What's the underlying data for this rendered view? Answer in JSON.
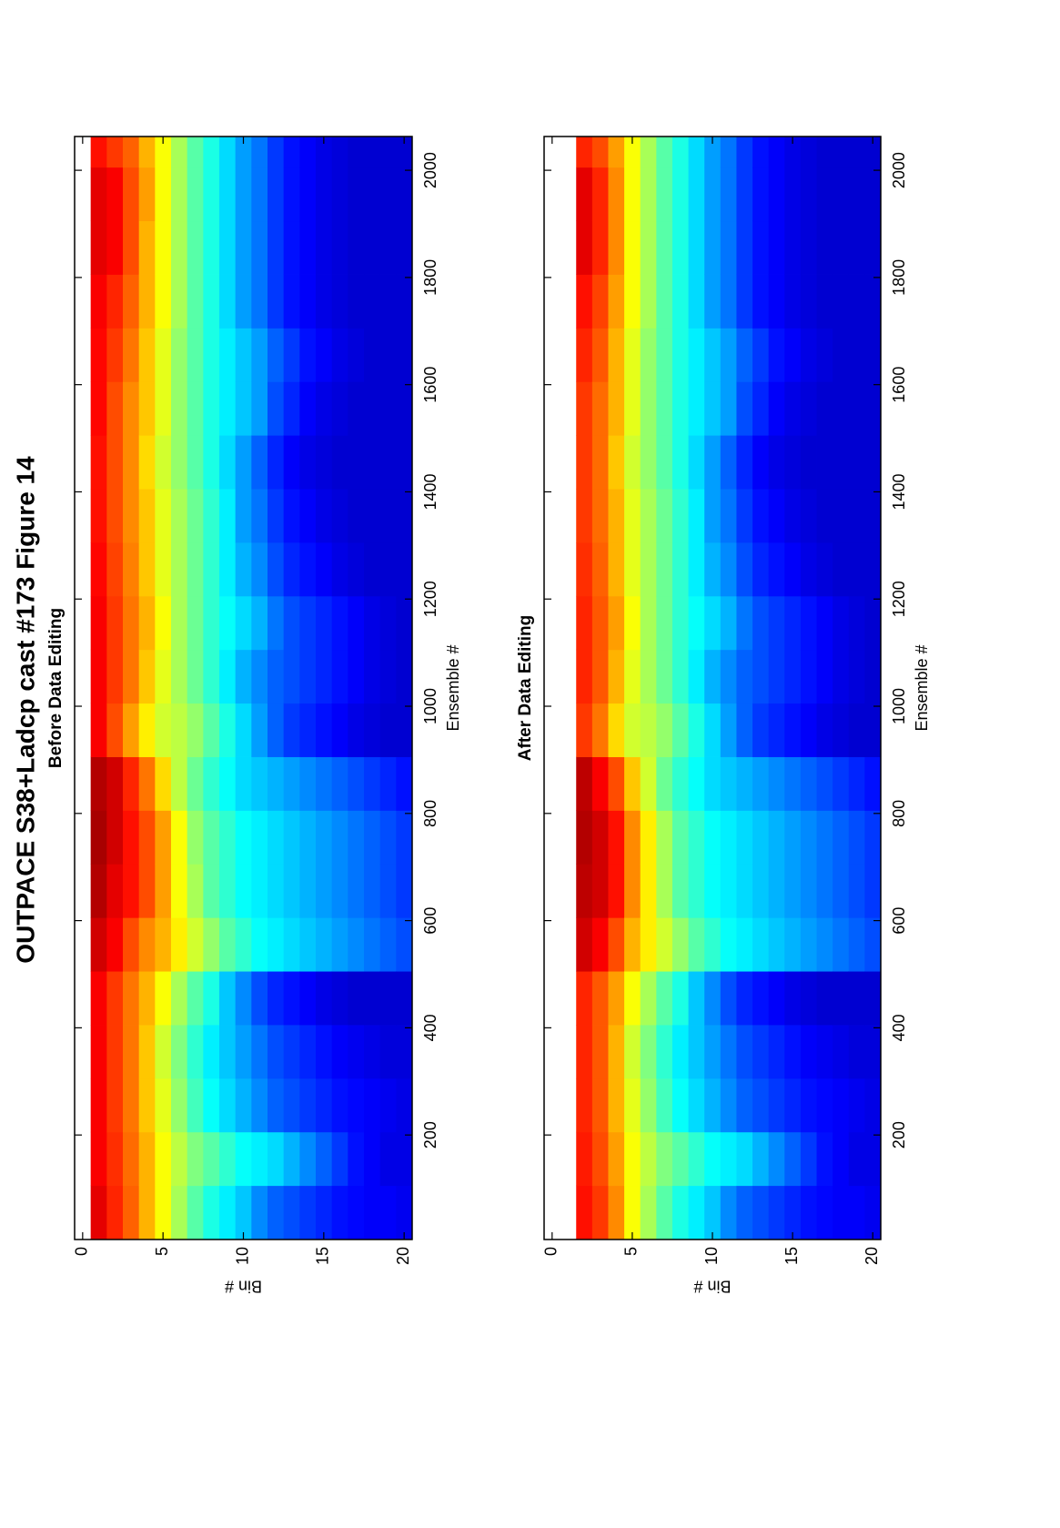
{
  "figure_title": "OUTPACE S38+Ladcp cast #173  Figure 14",
  "chart_data": [
    {
      "type": "heatmap",
      "title": "Before Data Editing",
      "xlabel": "Ensemble #",
      "ylabel": "Bin #",
      "colormap": "jet",
      "clim": [
        0,
        100
      ],
      "y_reversed": true,
      "xlim": [
        5,
        2063
      ],
      "ylim": [
        -0.5,
        20.5
      ],
      "xticks": [
        200,
        400,
        600,
        800,
        1000,
        1200,
        1400,
        1600,
        1800,
        2000
      ],
      "yticks": [
        0,
        5,
        10,
        15,
        20
      ],
      "x": [
        55,
        155,
        255,
        355,
        455,
        555,
        655,
        755,
        855,
        955,
        1055,
        1155,
        1255,
        1355,
        1455,
        1555,
        1655,
        1755,
        1855,
        1955,
        2055
      ],
      "y": [
        1,
        2,
        3,
        4,
        5,
        6,
        7,
        8,
        9,
        10,
        11,
        12,
        13,
        14,
        15,
        16,
        17,
        18,
        19,
        20
      ],
      "z": [
        [
          90,
          88,
          88,
          88,
          88,
          92,
          95,
          96,
          95,
          88,
          88,
          88,
          87,
          86,
          86,
          87,
          87,
          88,
          90,
          90,
          86
        ],
        [
          84,
          83,
          82,
          82,
          82,
          88,
          90,
          92,
          92,
          80,
          82,
          82,
          81,
          80,
          80,
          80,
          82,
          84,
          88,
          88,
          82
        ],
        [
          78,
          77,
          76,
          76,
          76,
          80,
          86,
          86,
          84,
          72,
          76,
          76,
          75,
          74,
          74,
          74,
          76,
          78,
          80,
          80,
          78
        ],
        [
          70,
          70,
          68,
          68,
          70,
          74,
          80,
          80,
          76,
          64,
          68,
          70,
          68,
          68,
          66,
          68,
          68,
          70,
          70,
          72,
          70
        ],
        [
          62,
          62,
          60,
          58,
          62,
          70,
          72,
          72,
          66,
          58,
          60,
          62,
          60,
          60,
          58,
          60,
          60,
          62,
          62,
          62,
          62
        ],
        [
          54,
          56,
          52,
          50,
          54,
          64,
          62,
          62,
          56,
          56,
          54,
          54,
          54,
          54,
          52,
          52,
          52,
          54,
          54,
          54,
          54
        ],
        [
          46,
          50,
          44,
          42,
          46,
          58,
          54,
          52,
          48,
          52,
          48,
          48,
          48,
          48,
          46,
          46,
          46,
          46,
          46,
          46,
          46
        ],
        [
          40,
          46,
          38,
          36,
          40,
          52,
          46,
          46,
          42,
          46,
          42,
          42,
          42,
          42,
          40,
          40,
          40,
          40,
          40,
          40,
          40
        ],
        [
          36,
          42,
          34,
          32,
          32,
          46,
          42,
          42,
          38,
          40,
          36,
          38,
          36,
          36,
          34,
          36,
          36,
          34,
          34,
          34,
          34
        ],
        [
          32,
          38,
          30,
          28,
          26,
          42,
          38,
          38,
          34,
          34,
          30,
          34,
          30,
          28,
          28,
          32,
          32,
          28,
          28,
          28,
          28
        ],
        [
          26,
          36,
          26,
          24,
          20,
          38,
          36,
          36,
          32,
          28,
          26,
          30,
          26,
          24,
          22,
          28,
          28,
          24,
          24,
          24,
          24
        ],
        [
          22,
          34,
          22,
          20,
          16,
          36,
          34,
          34,
          30,
          22,
          22,
          24,
          20,
          18,
          16,
          20,
          22,
          18,
          18,
          18,
          18
        ],
        [
          20,
          30,
          20,
          18,
          14,
          34,
          32,
          32,
          28,
          18,
          20,
          20,
          16,
          14,
          12,
          16,
          18,
          14,
          14,
          14,
          14
        ],
        [
          18,
          26,
          18,
          16,
          12,
          32,
          30,
          30,
          26,
          16,
          18,
          18,
          14,
          12,
          10,
          12,
          14,
          12,
          12,
          12,
          12
        ],
        [
          16,
          22,
          16,
          14,
          10,
          30,
          28,
          28,
          24,
          14,
          16,
          16,
          12,
          10,
          9,
          10,
          12,
          10,
          10,
          10,
          10
        ],
        [
          14,
          18,
          14,
          12,
          9,
          28,
          26,
          26,
          22,
          12,
          14,
          14,
          10,
          9,
          8,
          9,
          10,
          9,
          9,
          9,
          9
        ],
        [
          13,
          14,
          13,
          11,
          8,
          26,
          24,
          24,
          20,
          10,
          12,
          12,
          9,
          8,
          8,
          8,
          9,
          8,
          8,
          8,
          8
        ],
        [
          12,
          12,
          12,
          10,
          8,
          24,
          22,
          22,
          18,
          9,
          10,
          10,
          8,
          8,
          8,
          8,
          8,
          8,
          8,
          8,
          8
        ],
        [
          12,
          10,
          11,
          9,
          8,
          22,
          20,
          20,
          16,
          8,
          9,
          9,
          8,
          8,
          8,
          8,
          8,
          8,
          8,
          8,
          8
        ],
        [
          11,
          10,
          10,
          9,
          8,
          20,
          18,
          18,
          14,
          8,
          8,
          8,
          8,
          8,
          8,
          8,
          8,
          8,
          8,
          8,
          8
        ]
      ]
    },
    {
      "type": "heatmap",
      "title": "After Data Editing",
      "xlabel": "Ensemble #",
      "ylabel": "Bin #",
      "colormap": "jet",
      "clim": [
        0,
        100
      ],
      "y_reversed": true,
      "xlim": [
        5,
        2063
      ],
      "ylim": [
        -0.5,
        20.5
      ],
      "xticks": [
        200,
        400,
        600,
        800,
        1000,
        1200,
        1400,
        1600,
        1800,
        2000
      ],
      "yticks": [
        0,
        5,
        10,
        15,
        20
      ],
      "x": [
        55,
        155,
        255,
        355,
        455,
        555,
        655,
        755,
        855,
        955,
        1055,
        1155,
        1255,
        1355,
        1455,
        1555,
        1655,
        1755,
        1855,
        1955,
        2055
      ],
      "y": [
        1,
        2,
        3,
        4,
        5,
        6,
        7,
        8,
        9,
        10,
        11,
        12,
        13,
        14,
        15,
        16,
        17,
        18,
        19,
        20
      ],
      "z": [
        [
          null,
          null,
          null,
          null,
          null,
          null,
          null,
          null,
          null,
          null,
          null,
          null,
          null,
          null,
          null,
          null,
          null,
          null,
          null,
          null,
          null
        ],
        [
          86,
          85,
          84,
          84,
          84,
          92,
          94,
          95,
          94,
          82,
          84,
          84,
          83,
          82,
          82,
          82,
          84,
          86,
          90,
          90,
          84
        ],
        [
          82,
          80,
          79,
          79,
          79,
          88,
          92,
          92,
          88,
          76,
          79,
          79,
          78,
          77,
          77,
          77,
          79,
          81,
          84,
          84,
          80
        ],
        [
          74,
          72,
          70,
          70,
          72,
          80,
          86,
          86,
          80,
          66,
          70,
          72,
          70,
          70,
          68,
          70,
          70,
          72,
          74,
          74,
          72
        ],
        [
          62,
          62,
          60,
          58,
          62,
          70,
          74,
          74,
          68,
          58,
          60,
          62,
          60,
          60,
          58,
          60,
          60,
          62,
          62,
          62,
          62
        ],
        [
          54,
          56,
          52,
          50,
          54,
          64,
          64,
          64,
          58,
          56,
          54,
          54,
          54,
          54,
          52,
          52,
          52,
          54,
          54,
          54,
          54
        ],
        [
          46,
          50,
          44,
          42,
          46,
          58,
          54,
          54,
          48,
          52,
          48,
          48,
          48,
          48,
          46,
          46,
          46,
          46,
          46,
          46,
          46
        ],
        [
          40,
          46,
          38,
          36,
          40,
          52,
          46,
          46,
          42,
          46,
          42,
          42,
          42,
          42,
          40,
          40,
          40,
          40,
          40,
          40,
          40
        ],
        [
          36,
          42,
          34,
          32,
          32,
          46,
          42,
          42,
          38,
          40,
          36,
          38,
          36,
          36,
          34,
          36,
          36,
          34,
          34,
          34,
          34
        ],
        [
          32,
          38,
          30,
          28,
          26,
          42,
          38,
          38,
          34,
          34,
          30,
          34,
          30,
          28,
          28,
          32,
          32,
          28,
          28,
          28,
          28
        ],
        [
          26,
          36,
          26,
          24,
          20,
          38,
          36,
          36,
          32,
          28,
          26,
          30,
          26,
          24,
          22,
          28,
          28,
          24,
          24,
          24,
          24
        ],
        [
          22,
          34,
          22,
          20,
          16,
          36,
          34,
          34,
          30,
          22,
          22,
          24,
          20,
          18,
          16,
          20,
          22,
          18,
          18,
          18,
          18
        ],
        [
          20,
          30,
          20,
          18,
          14,
          34,
          32,
          32,
          28,
          18,
          20,
          20,
          16,
          14,
          12,
          16,
          18,
          14,
          14,
          14,
          14
        ],
        [
          18,
          26,
          18,
          16,
          12,
          32,
          30,
          30,
          26,
          16,
          18,
          18,
          14,
          12,
          10,
          12,
          14,
          12,
          12,
          12,
          12
        ],
        [
          16,
          22,
          16,
          14,
          10,
          30,
          28,
          28,
          24,
          14,
          16,
          16,
          12,
          10,
          9,
          10,
          12,
          10,
          10,
          10,
          10
        ],
        [
          14,
          18,
          14,
          12,
          9,
          28,
          26,
          26,
          22,
          12,
          14,
          14,
          10,
          9,
          8,
          9,
          10,
          9,
          9,
          9,
          9
        ],
        [
          13,
          14,
          13,
          11,
          8,
          26,
          24,
          24,
          20,
          10,
          12,
          12,
          9,
          8,
          8,
          8,
          9,
          8,
          8,
          8,
          8
        ],
        [
          12,
          12,
          12,
          10,
          8,
          24,
          22,
          22,
          18,
          9,
          10,
          10,
          8,
          8,
          8,
          8,
          8,
          8,
          8,
          8,
          8
        ],
        [
          12,
          10,
          11,
          9,
          8,
          22,
          20,
          20,
          16,
          8,
          9,
          9,
          8,
          8,
          8,
          8,
          8,
          8,
          8,
          8,
          8
        ],
        [
          11,
          10,
          10,
          9,
          8,
          20,
          18,
          18,
          14,
          8,
          8,
          8,
          8,
          8,
          8,
          8,
          8,
          8,
          8,
          8,
          8
        ]
      ]
    }
  ]
}
